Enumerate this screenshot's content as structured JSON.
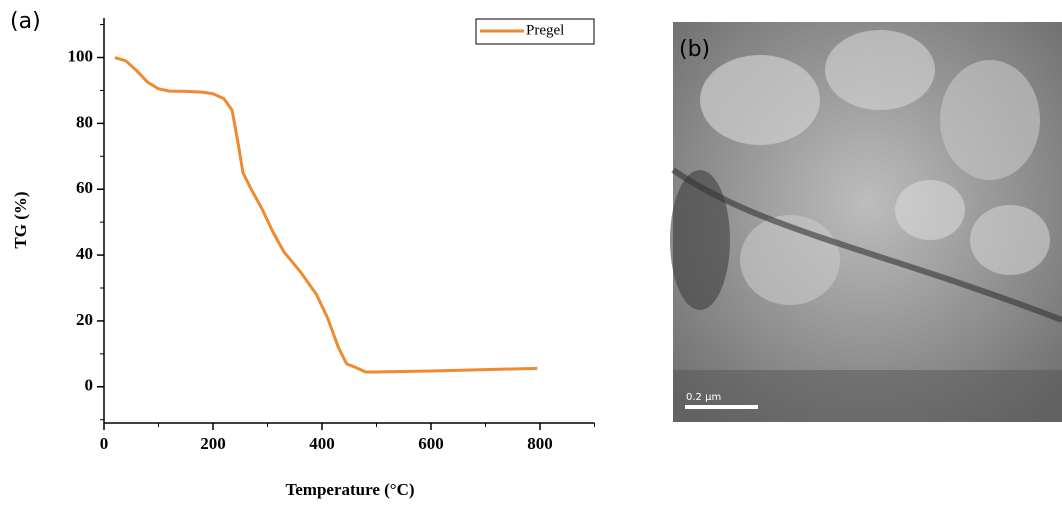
{
  "chart_data": {
    "type": "line",
    "panel_label": "(a)",
    "x_label": "Temperature (°C)",
    "y_label": "TG (%)",
    "x": [
      20,
      40,
      60,
      80,
      100,
      120,
      150,
      180,
      200,
      220,
      235,
      245,
      255,
      270,
      290,
      310,
      330,
      360,
      390,
      410,
      430,
      445,
      460,
      480,
      500,
      600,
      700,
      795
    ],
    "series": [
      {
        "name": "Pregel",
        "color": "#ee8a2f",
        "values": [
          100,
          99,
          96,
          92.5,
          90.5,
          89.8,
          89.7,
          89.5,
          89,
          87.5,
          84,
          75,
          65,
          60,
          54,
          47,
          41,
          35,
          28,
          21,
          12,
          7,
          6,
          4.5,
          4.5,
          4.8,
          5.2,
          5.6
        ]
      }
    ],
    "xlim": [
      0,
      900
    ],
    "xticks": [
      0,
      200,
      400,
      600,
      800
    ],
    "xticks_minor": [
      100,
      300,
      500,
      700,
      900
    ],
    "ylim": [
      -11,
      112
    ],
    "yticks": [
      0,
      20,
      40,
      60,
      80,
      100
    ],
    "yticks_minor": [
      -10,
      10,
      30,
      50,
      70,
      90,
      110
    ],
    "legend": "top-right"
  },
  "image": {
    "panel_label": "(b)",
    "scale_bar": "0.2 μm"
  }
}
